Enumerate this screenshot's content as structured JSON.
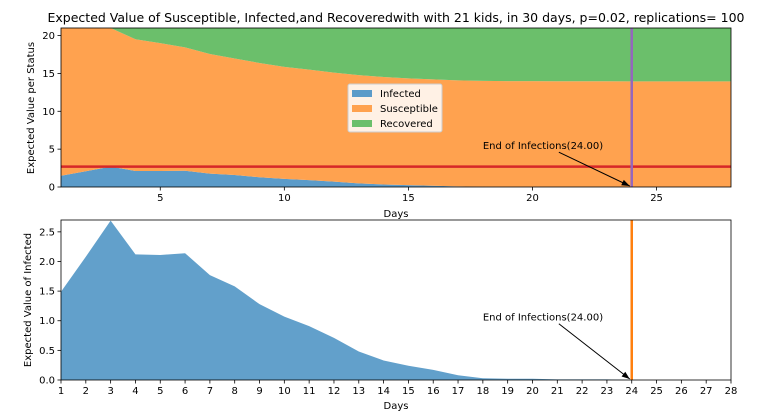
{
  "chart_data": [
    {
      "type": "area",
      "stacked": true,
      "title": "Expected Value of Susceptible, Infected,and Recoveredwith with 21 kids, in 30 days, p=0.02, replications= 100",
      "xlabel": "Days",
      "ylabel": "Expected Value per Status",
      "xlim": [
        1,
        28
      ],
      "ylim": [
        0,
        21
      ],
      "xticks": [
        5,
        10,
        15,
        20,
        25
      ],
      "yticks": [
        0,
        5,
        10,
        15,
        20
      ],
      "x": [
        1,
        2,
        3,
        4,
        5,
        6,
        7,
        8,
        9,
        10,
        11,
        12,
        13,
        14,
        15,
        16,
        17,
        18,
        19,
        20,
        21,
        22,
        23,
        24,
        25,
        26,
        27,
        28
      ],
      "series": [
        {
          "name": "Infected",
          "color": "#5b9bc9",
          "values": [
            1.49,
            2.08,
            2.69,
            2.12,
            2.11,
            2.14,
            1.77,
            1.58,
            1.28,
            1.07,
            0.91,
            0.71,
            0.48,
            0.33,
            0.24,
            0.17,
            0.08,
            0.03,
            0.02,
            0.02,
            0.01,
            0.01,
            0.01,
            0,
            0,
            0,
            0,
            0
          ]
        },
        {
          "name": "Susceptible",
          "color": "#ffa24f",
          "values": [
            19.51,
            18.92,
            18.31,
            17.4,
            16.9,
            16.3,
            15.8,
            15.4,
            15.1,
            14.8,
            14.6,
            14.4,
            14.3,
            14.2,
            14.1,
            14.05,
            14.0,
            13.98,
            13.97,
            13.96,
            13.96,
            13.96,
            13.95,
            13.95,
            13.95,
            13.95,
            13.95,
            13.95
          ]
        },
        {
          "name": "Recovered",
          "color": "#6bbf6b",
          "values": [
            0,
            0,
            0,
            1.48,
            1.99,
            2.56,
            3.43,
            4.02,
            4.62,
            5.13,
            5.49,
            5.89,
            6.22,
            6.47,
            6.66,
            6.78,
            6.92,
            6.99,
            7.01,
            7.02,
            7.03,
            7.03,
            7.04,
            7.05,
            7.05,
            7.05,
            7.05,
            7.05
          ]
        }
      ],
      "legend": {
        "items": [
          "Infected",
          "Susceptible",
          "Recovered"
        ],
        "placement": "center"
      },
      "hline": {
        "y": 2.69,
        "color": "#d62728"
      },
      "vline": {
        "x": 24,
        "color": "#9467bd"
      },
      "annotation": {
        "text": "End of Infections(24.00)",
        "text_x": 18,
        "text_y": 5,
        "arrow_to_x": 24,
        "arrow_to_y": 0
      }
    },
    {
      "type": "area",
      "xlabel": "Days",
      "ylabel": "Expected Value of Infected",
      "xlim": [
        1,
        28
      ],
      "ylim": [
        0,
        2.7
      ],
      "xticks": [
        1,
        2,
        3,
        4,
        5,
        6,
        7,
        8,
        9,
        10,
        11,
        12,
        13,
        14,
        15,
        16,
        17,
        18,
        19,
        20,
        21,
        22,
        23,
        24,
        25,
        26,
        27,
        28
      ],
      "yticks": [
        0.0,
        0.5,
        1.0,
        1.5,
        2.0,
        2.5
      ],
      "ytick_labels": [
        "0.0",
        "0.5",
        "1.0",
        "1.5",
        "2.0",
        "2.5"
      ],
      "x": [
        1,
        2,
        3,
        4,
        5,
        6,
        7,
        8,
        9,
        10,
        11,
        12,
        13,
        14,
        15,
        16,
        17,
        18,
        19,
        20,
        21,
        22,
        23,
        24,
        25,
        26,
        27,
        28
      ],
      "series": [
        {
          "name": "Infected",
          "color": "#62a0cb",
          "values": [
            1.49,
            2.08,
            2.69,
            2.12,
            2.11,
            2.14,
            1.77,
            1.58,
            1.28,
            1.07,
            0.91,
            0.71,
            0.48,
            0.33,
            0.24,
            0.17,
            0.08,
            0.03,
            0.02,
            0.02,
            0.01,
            0.01,
            0.01,
            0,
            0,
            0,
            0,
            0
          ]
        }
      ],
      "vline": {
        "x": 24,
        "color": "#ff7f0e"
      },
      "annotation": {
        "text": "End of Infections(24.00)",
        "text_x": 18,
        "text_y": 1.0,
        "arrow_to_x": 24,
        "arrow_to_y": 0
      }
    }
  ]
}
